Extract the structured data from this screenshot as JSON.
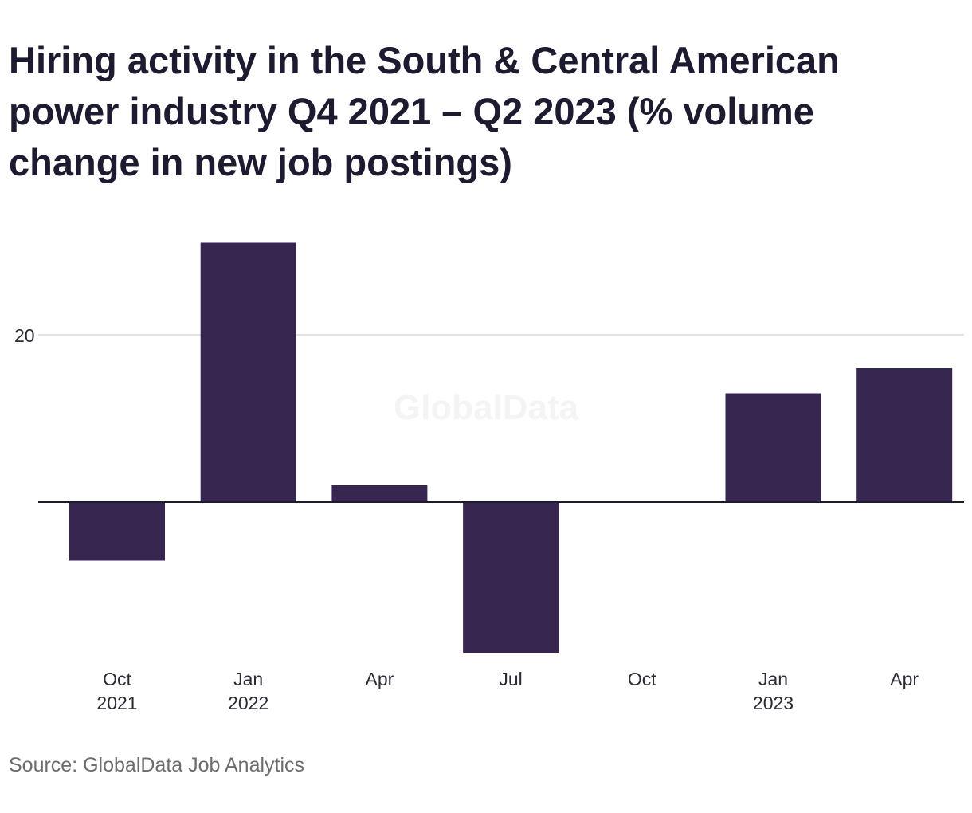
{
  "chart_data": {
    "type": "bar",
    "title": "Hiring activity in the South & Central American power industry Q4 2021 – Q2 2023 (% volume change in new job postings)",
    "categories": [
      "Oct 2021",
      "Jan 2022",
      "Apr",
      "Jul",
      "Oct",
      "Jan 2023",
      "Apr"
    ],
    "tick_labels": [
      [
        "Oct",
        "2021"
      ],
      [
        "Jan",
        "2022"
      ],
      [
        "Apr",
        ""
      ],
      [
        "Jul",
        ""
      ],
      [
        "Oct",
        ""
      ],
      [
        "Jan",
        "2023"
      ],
      [
        "Apr",
        ""
      ]
    ],
    "series": [
      {
        "values": [
          -7,
          31,
          2,
          -18,
          0,
          13,
          16
        ]
      }
    ],
    "yticks": [
      20
    ],
    "ylim": [
      -20,
      31
    ],
    "xlabel": "",
    "ylabel": "",
    "grid": true,
    "bar_color": "#372650",
    "watermark": "GlobalData"
  },
  "source": "Source: GlobalData Job Analytics"
}
